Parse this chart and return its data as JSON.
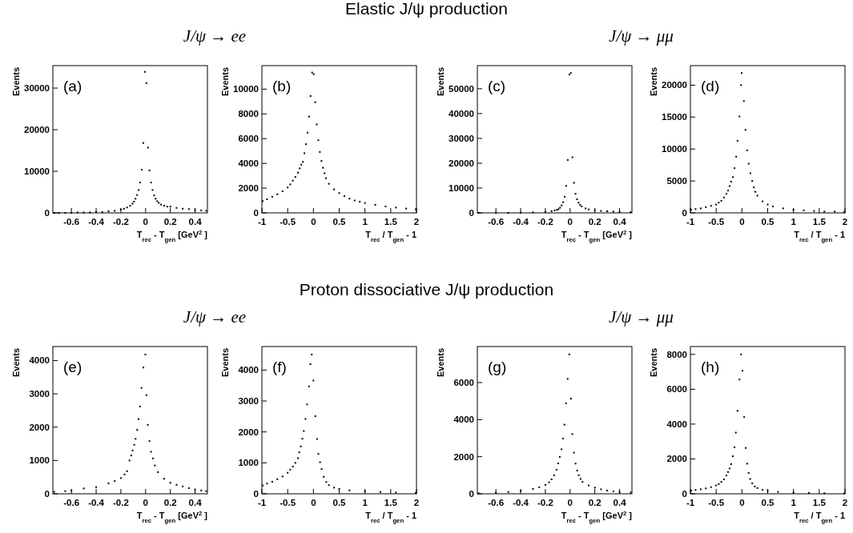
{
  "chart_data": [
    {
      "type": "other",
      "title": "Elastic J/ψ production"
    },
    {
      "type": "scatter",
      "subtitle": "J/ψ → ee",
      "xlabel": "T$_{rec}$ - T$_{gen}$ [GeV$^{2}$]",
      "ylabel": "Events",
      "annotations": [
        "(a)"
      ],
      "marker": "square",
      "xlim": [
        -0.75,
        0.5
      ],
      "xticks": [
        -0.6,
        -0.4,
        -0.2,
        0,
        0.2,
        0.4
      ],
      "ylim": [
        0,
        35400
      ],
      "yticks": [
        0,
        10000,
        20000,
        30000
      ],
      "series": [
        {
          "color": "#000000",
          "x": [
            -0.74,
            -0.7,
            -0.65,
            -0.6,
            -0.55,
            -0.5,
            -0.45,
            -0.4,
            -0.35,
            -0.3,
            -0.25,
            -0.2,
            -0.175,
            -0.15,
            -0.125,
            -0.10625,
            -0.09375,
            -0.08125,
            -0.06875,
            -0.05625,
            -0.04375,
            -0.03125,
            -0.01875,
            -0.00625,
            0.00625,
            0.01875,
            0.03125,
            0.04375,
            0.05625,
            0.06875,
            0.08125,
            0.09375,
            0.10625,
            0.125,
            0.15,
            0.175,
            0.2,
            0.25,
            0.3,
            0.35,
            0.4,
            0.45,
            0.49
          ],
          "values": [
            0,
            0,
            0,
            0,
            100,
            100,
            100,
            200,
            200,
            400,
            500,
            800,
            1000,
            1300,
            1700,
            2200,
            2700,
            3400,
            4300,
            5500,
            7300,
            10400,
            16800,
            33900,
            31200,
            15700,
            10200,
            7300,
            5500,
            4200,
            3400,
            2800,
            2400,
            2000,
            1700,
            1500,
            1500,
            1200,
            1000,
            900,
            700,
            600,
            500
          ]
        }
      ]
    },
    {
      "type": "scatter",
      "xlabel": "T$_{rec}$ / T$_{gen}$ - 1",
      "ylabel": "Events",
      "annotations": [
        "(b)"
      ],
      "marker": "square",
      "xlim": [
        -1,
        2
      ],
      "xticks": [
        -1,
        -0.5,
        0,
        0.5,
        1,
        1.5,
        2
      ],
      "ylim": [
        0,
        11900
      ],
      "yticks": [
        0,
        2000,
        4000,
        6000,
        8000,
        10000
      ],
      "series": [
        {
          "color": "#000000",
          "x": [
            -0.985,
            -0.9,
            -0.8,
            -0.7,
            -0.6,
            -0.5,
            -0.45,
            -0.4,
            -0.35,
            -0.3,
            -0.265,
            -0.235,
            -0.205,
            -0.175,
            -0.145,
            -0.115,
            -0.085,
            -0.055,
            -0.025,
            0.005,
            0.035,
            0.065,
            0.095,
            0.125,
            0.155,
            0.185,
            0.215,
            0.245,
            0.3,
            0.4,
            0.5,
            0.6,
            0.7,
            0.8,
            0.9,
            1.0,
            1.2,
            1.4,
            1.6,
            1.8,
            1.985
          ],
          "values": [
            950,
            1100,
            1300,
            1500,
            1750,
            2050,
            2300,
            2600,
            2900,
            3250,
            3600,
            3900,
            4120,
            4820,
            5550,
            6480,
            7780,
            9440,
            11340,
            11210,
            8940,
            7150,
            5870,
            4920,
            4190,
            3650,
            3200,
            2800,
            2350,
            1900,
            1600,
            1350,
            1150,
            1000,
            900,
            800,
            650,
            520,
            430,
            350,
            290
          ]
        }
      ]
    },
    {
      "type": "scatter",
      "subtitle": "J/ψ → μμ",
      "xlabel": "T$_{rec}$ - T$_{gen}$ [GeV$^{2}$]",
      "ylabel": "Events",
      "annotations": [
        "(c)"
      ],
      "marker": "square",
      "xlim": [
        -0.75,
        0.5
      ],
      "xticks": [
        -0.6,
        -0.4,
        -0.2,
        0,
        0.2,
        0.4
      ],
      "ylim": [
        0,
        59300
      ],
      "yticks": [
        0,
        10000,
        20000,
        30000,
        40000,
        50000
      ],
      "series": [
        {
          "color": "#000000",
          "x": [
            -0.74,
            -0.6,
            -0.5,
            -0.4,
            -0.3,
            -0.2,
            -0.15,
            -0.125,
            -0.10625,
            -0.09375,
            -0.08125,
            -0.06875,
            -0.05625,
            -0.04375,
            -0.03125,
            -0.01875,
            -0.00625,
            0.00625,
            0.01875,
            0.03125,
            0.04375,
            0.05625,
            0.06875,
            0.08125,
            0.09375,
            0.125,
            0.15,
            0.2,
            0.25,
            0.3,
            0.35,
            0.4,
            0.49
          ],
          "values": [
            0,
            0,
            0,
            100,
            200,
            400,
            700,
            1000,
            1200,
            1500,
            2100,
            3000,
            4300,
            6500,
            10900,
            21300,
            55700,
            56300,
            22400,
            12100,
            7700,
            5500,
            4100,
            3200,
            2600,
            1800,
            1400,
            1000,
            800,
            650,
            500,
            400,
            300
          ]
        }
      ]
    },
    {
      "type": "scatter",
      "xlabel": "T$_{rec}$ / T$_{gen}$ - 1",
      "ylabel": "Events",
      "annotations": [
        "(d)"
      ],
      "marker": "square",
      "xlim": [
        -1,
        2
      ],
      "xticks": [
        -1,
        -0.5,
        0,
        0.5,
        1,
        1.5,
        2
      ],
      "ylim": [
        0,
        23060
      ],
      "yticks": [
        0,
        5000,
        10000,
        15000,
        20000
      ],
      "series": [
        {
          "color": "#000000",
          "x": [
            -0.985,
            -0.9,
            -0.8,
            -0.7,
            -0.6,
            -0.5,
            -0.45,
            -0.4,
            -0.35,
            -0.3,
            -0.27,
            -0.24,
            -0.21,
            -0.176,
            -0.144,
            -0.112,
            -0.085,
            -0.048,
            -0.016,
            -0.005,
            0.037,
            0.069,
            0.101,
            0.133,
            0.165,
            0.2,
            0.23,
            0.26,
            0.3,
            0.4,
            0.5,
            0.6,
            0.8,
            1.0,
            1.2,
            1.4,
            1.6,
            1.8,
            1.985
          ],
          "values": [
            500,
            600,
            700,
            900,
            1100,
            1300,
            1600,
            1900,
            2400,
            3000,
            3500,
            4200,
            4900,
            5600,
            7000,
            8800,
            11300,
            15100,
            20000,
            21900,
            17500,
            13000,
            9800,
            7700,
            6200,
            5000,
            4000,
            3300,
            2700,
            1800,
            1300,
            1000,
            700,
            500,
            400,
            300,
            200,
            200,
            100
          ]
        }
      ]
    },
    {
      "type": "other",
      "title": "Proton dissociative J/ψ production"
    },
    {
      "type": "scatter",
      "subtitle": "J/ψ → ee",
      "xlabel": "T$_{rec}$ - T$_{gen}$ [GeV$^{2}$]",
      "ylabel": "Events",
      "annotations": [
        "(e)"
      ],
      "marker": "square",
      "xlim": [
        -0.75,
        0.5
      ],
      "xticks": [
        -0.6,
        -0.4,
        -0.2,
        0,
        0.2,
        0.4
      ],
      "ylim": [
        0,
        4420
      ],
      "yticks": [
        0,
        1000,
        2000,
        3000,
        4000
      ],
      "series": [
        {
          "color": "#000000",
          "x": [
            -0.74,
            -0.65,
            -0.6,
            -0.5,
            -0.4,
            -0.3,
            -0.25,
            -0.2,
            -0.17,
            -0.15,
            -0.13,
            -0.117,
            -0.105,
            -0.092,
            -0.081,
            -0.068,
            -0.057,
            -0.046,
            -0.033,
            -0.018,
            -0.002,
            0.007,
            0.018,
            0.031,
            0.044,
            0.059,
            0.075,
            0.1,
            0.15,
            0.2,
            0.25,
            0.3,
            0.35,
            0.4,
            0.45,
            0.49
          ],
          "values": [
            60,
            80,
            100,
            160,
            200,
            310,
            380,
            470,
            580,
            680,
            1000,
            1150,
            1300,
            1470,
            1650,
            1920,
            2240,
            2620,
            3180,
            3790,
            4180,
            2960,
            2070,
            1580,
            1260,
            1060,
            850,
            650,
            450,
            330,
            270,
            220,
            170,
            130,
            100,
            80
          ]
        }
      ]
    },
    {
      "type": "scatter",
      "xlabel": "T$_{rec}$ / T$_{gen}$ - 1",
      "ylabel": "Events",
      "annotations": [
        "(f)"
      ],
      "marker": "square",
      "xlim": [
        -1,
        2
      ],
      "xticks": [
        -1,
        -0.5,
        0,
        0.5,
        1,
        1.5,
        2
      ],
      "ylim": [
        0,
        4760
      ],
      "yticks": [
        0,
        1000,
        2000,
        3000,
        4000
      ],
      "series": [
        {
          "color": "#000000",
          "x": [
            -0.985,
            -0.9,
            -0.8,
            -0.7,
            -0.6,
            -0.5,
            -0.45,
            -0.4,
            -0.35,
            -0.3,
            -0.275,
            -0.246,
            -0.214,
            -0.187,
            -0.155,
            -0.123,
            -0.086,
            -0.059,
            -0.032,
            0,
            0.037,
            0.07,
            0.096,
            0.128,
            0.16,
            0.2,
            0.25,
            0.3,
            0.4,
            0.5,
            0.7,
            1,
            1.3,
            1.6,
            1.985
          ],
          "values": [
            270,
            330,
            390,
            470,
            560,
            680,
            780,
            880,
            1000,
            1150,
            1340,
            1530,
            1780,
            2030,
            2420,
            2890,
            3470,
            4190,
            4500,
            3660,
            2510,
            1770,
            1290,
            1020,
            800,
            550,
            380,
            280,
            200,
            160,
            110,
            80,
            60,
            40,
            30
          ]
        }
      ]
    },
    {
      "type": "scatter",
      "subtitle": "J/ψ → μμ",
      "xlabel": "T$_{rec}$ - T$_{gen}$ [GeV$^{2}$]",
      "ylabel": "Events",
      "annotations": [
        "(g)"
      ],
      "marker": "square",
      "xlim": [
        -0.75,
        0.5
      ],
      "xticks": [
        -0.6,
        -0.4,
        -0.2,
        0,
        0.2,
        0.4
      ],
      "ylim": [
        0,
        7945
      ],
      "yticks": [
        0,
        2000,
        4000,
        6000
      ],
      "series": [
        {
          "color": "#000000",
          "x": [
            -0.74,
            -0.6,
            -0.5,
            -0.4,
            -0.3,
            -0.25,
            -0.2,
            -0.17,
            -0.15,
            -0.13,
            -0.11,
            -0.097,
            -0.084,
            -0.07,
            -0.057,
            -0.046,
            -0.033,
            -0.02,
            -0.007,
            0.007,
            0.018,
            0.031,
            0.044,
            0.057,
            0.07,
            0.085,
            0.1,
            0.15,
            0.2,
            0.25,
            0.3,
            0.35,
            0.4,
            0.49
          ],
          "values": [
            30,
            60,
            100,
            160,
            260,
            350,
            480,
            620,
            780,
            1000,
            1300,
            1640,
            1990,
            2400,
            2980,
            3730,
            4880,
            6200,
            7520,
            5130,
            3220,
            2220,
            1630,
            1250,
            1000,
            800,
            650,
            450,
            330,
            240,
            170,
            130,
            100,
            70
          ]
        }
      ]
    },
    {
      "type": "scatter",
      "xlabel": "T$_{rec}$ / T$_{gen}$ - 1",
      "ylabel": "Events",
      "annotations": [
        "(h)"
      ],
      "marker": "square",
      "xlim": [
        -1,
        2
      ],
      "xticks": [
        -1,
        -0.5,
        0,
        0.5,
        1,
        1.5,
        2
      ],
      "ylim": [
        0,
        8450
      ],
      "yticks": [
        0,
        2000,
        4000,
        6000,
        8000
      ],
      "series": [
        {
          "color": "#000000",
          "x": [
            -0.985,
            -0.9,
            -0.8,
            -0.7,
            -0.6,
            -0.5,
            -0.45,
            -0.4,
            -0.35,
            -0.3,
            -0.27,
            -0.24,
            -0.21,
            -0.177,
            -0.145,
            -0.118,
            -0.086,
            -0.048,
            -0.016,
            0.011,
            0.043,
            0.075,
            0.102,
            0.13,
            0.16,
            0.2,
            0.25,
            0.3,
            0.4,
            0.5,
            0.7,
            1,
            1.3,
            1.6,
            1.985
          ],
          "values": [
            180,
            220,
            260,
            310,
            380,
            480,
            560,
            680,
            830,
            1050,
            1250,
            1450,
            1700,
            2150,
            2670,
            3510,
            4760,
            6560,
            8000,
            7060,
            4400,
            2630,
            1730,
            1200,
            850,
            600,
            420,
            330,
            230,
            170,
            110,
            70,
            50,
            30,
            20
          ]
        }
      ]
    }
  ]
}
